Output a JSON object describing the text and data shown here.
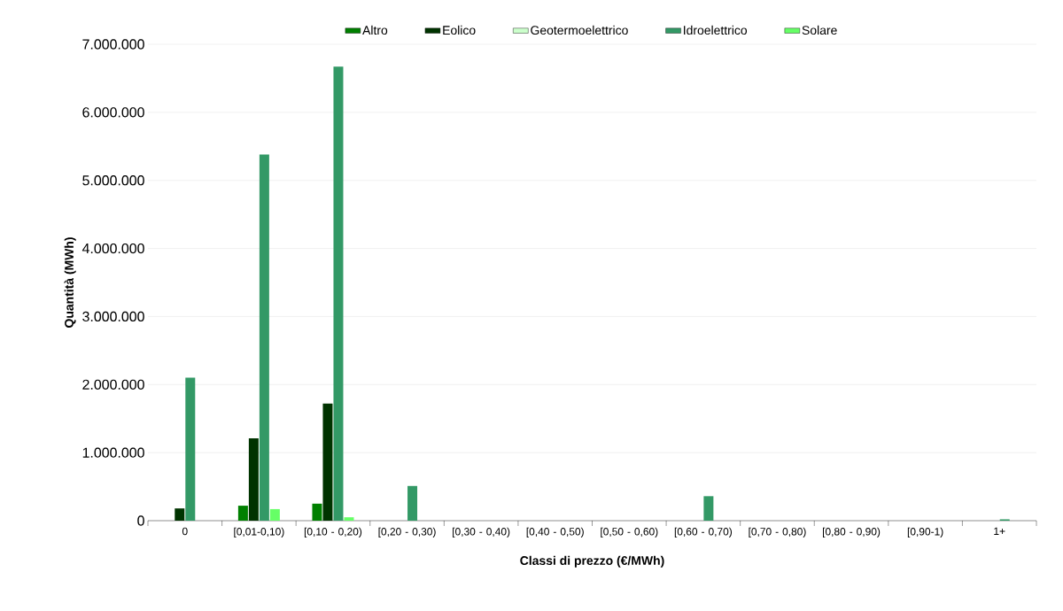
{
  "chart_data": {
    "type": "bar",
    "xlabel": "Classi di prezzo (€/MWh)",
    "ylabel": "Quantità (MWh)",
    "categories": [
      "0",
      "[0,01-0,10)",
      "[0,10 - 0,20)",
      "[0,20 - 0,30)",
      "[0,30 - 0,40)",
      "[0,40 - 0,50)",
      "[0,50 - 0,60)",
      "[0,60 - 0,70)",
      "[0,70 - 0,80)",
      "[0,80 - 0,90)",
      "[0,90-1)",
      "1+"
    ],
    "series": [
      {
        "name": "Altro",
        "color": "#008000",
        "values": [
          null,
          220000,
          250000,
          null,
          null,
          null,
          null,
          null,
          null,
          null,
          null,
          null
        ]
      },
      {
        "name": "Eolico",
        "color": "#003300",
        "values": [
          180000,
          1210000,
          1720000,
          null,
          null,
          null,
          null,
          null,
          null,
          null,
          null,
          null
        ]
      },
      {
        "name": "Geotermoelettrico",
        "color": "#ccffcc",
        "values": [
          null,
          null,
          null,
          null,
          null,
          null,
          null,
          null,
          null,
          null,
          null,
          null
        ]
      },
      {
        "name": "Idroelettrico",
        "color": "#339966",
        "values": [
          2100000,
          5380000,
          6670000,
          510000,
          null,
          null,
          null,
          360000,
          null,
          null,
          null,
          20000
        ]
      },
      {
        "name": "Solare",
        "color": "#66ff66",
        "values": [
          null,
          170000,
          50000,
          null,
          null,
          null,
          null,
          null,
          null,
          null,
          null,
          null
        ]
      }
    ],
    "ylim": [
      0,
      7000000
    ],
    "yticks": [
      0,
      {
        "value": 1000000,
        "label": "1.000.000"
      },
      {
        "value": 2000000,
        "label": "2.000.000"
      },
      {
        "value": 3000000,
        "label": "3.000.000"
      },
      {
        "value": 4000000,
        "label": "4.000.000"
      },
      {
        "value": 5000000,
        "label": "5.000.000"
      },
      {
        "value": 6000000,
        "label": "6.000.000"
      },
      {
        "value": 7000000,
        "label": "7.000.000"
      }
    ],
    "grid": "y",
    "legend": "top"
  }
}
